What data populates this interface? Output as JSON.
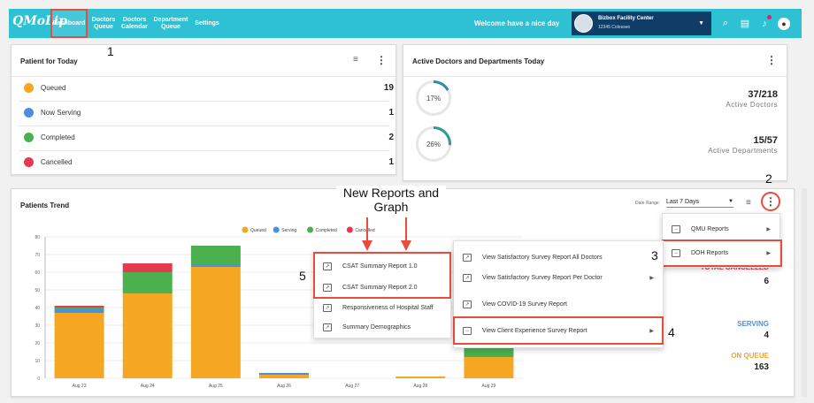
{
  "topbar": {
    "logo": "QMoLip",
    "nav": [
      {
        "label": "Dashboard",
        "active": true
      },
      {
        "label": "Doctors\nQueue"
      },
      {
        "label": "Doctors\nCalendar"
      },
      {
        "label": "Department\nQueue"
      },
      {
        "label": "Settings"
      }
    ],
    "welcome": "Welcome have a nice day",
    "facility_name": "Bizbox Facility Center",
    "facility_id": "12345 Colosseo"
  },
  "patients_today": {
    "title": "Patient for Today",
    "rows": [
      {
        "label": "Queued",
        "count": "19",
        "color": "#f5a623"
      },
      {
        "label": "Now Serving",
        "count": "1",
        "color": "#4a90e2"
      },
      {
        "label": "Completed",
        "count": "2",
        "color": "#4caf50"
      },
      {
        "label": "Cancelled",
        "count": "1",
        "color": "#e53950"
      }
    ]
  },
  "active": {
    "title": "Active Doctors and Departments Today",
    "doctors": {
      "pct": "17%",
      "fraction": 0.17,
      "value": "37/218",
      "label": "Active Doctors"
    },
    "departments": {
      "pct": "26%",
      "fraction": 0.26,
      "value": "15/57",
      "label": "Active Departments"
    }
  },
  "trend": {
    "title": "Patients Trend",
    "date_range_label": "Date Range:",
    "date_range_value": "Last 7 Days",
    "side": {
      "cancelled_label": "TOTAL CANCELLED",
      "cancelled_value": "6",
      "serving_label": "SERVING",
      "serving_value": "4",
      "queue_label": "ON QUEUE",
      "queue_value": "163"
    }
  },
  "chart_data": {
    "type": "bar",
    "stacked": true,
    "categories": [
      "Aug 23",
      "Aug 24",
      "Aug 25",
      "Aug 26",
      "Aug 27",
      "Aug 28",
      "Aug 29"
    ],
    "series": [
      {
        "name": "Queued",
        "color": "#f5a623",
        "values": [
          37,
          48,
          63,
          2,
          0,
          1,
          12
        ]
      },
      {
        "name": "Serving",
        "color": "#4a90e2",
        "values": [
          2,
          0,
          1,
          1,
          0,
          0,
          0
        ]
      },
      {
        "name": "Completed",
        "color": "#4caf50",
        "values": [
          1,
          12,
          11,
          0,
          0,
          0,
          6
        ]
      },
      {
        "name": "Cancelled",
        "color": "#e53950",
        "values": [
          1,
          5,
          0,
          0,
          0,
          0,
          0
        ]
      }
    ],
    "ylim": [
      0,
      80
    ],
    "yticks": [
      "0",
      "10",
      "20",
      "30",
      "40",
      "50",
      "60",
      "70",
      "80"
    ],
    "legend": "top-center"
  },
  "menus": {
    "main": [
      {
        "label": "QMU Reports"
      },
      {
        "label": "DOH Reports"
      }
    ],
    "doh": [
      {
        "label": "View Satisfactory Survey Report All Doctors"
      },
      {
        "label": "View Satisfactory Survey Report Per Doctor"
      },
      {
        "label": "View COVID-19 Survey Report"
      },
      {
        "label": "View Client Experience Survey Report"
      }
    ],
    "cx": [
      {
        "label": "CSAT Summary Report 1.0"
      },
      {
        "label": "CSAT Summary Report 2.0"
      },
      {
        "label": "Responsiveness of Hospital Staff"
      },
      {
        "label": "Summary Demographics"
      }
    ]
  },
  "annotations": {
    "n1": "1",
    "n2": "2",
    "n3": "3",
    "n4": "4",
    "n5": "5",
    "callout": "New Reports and\nGraph"
  }
}
